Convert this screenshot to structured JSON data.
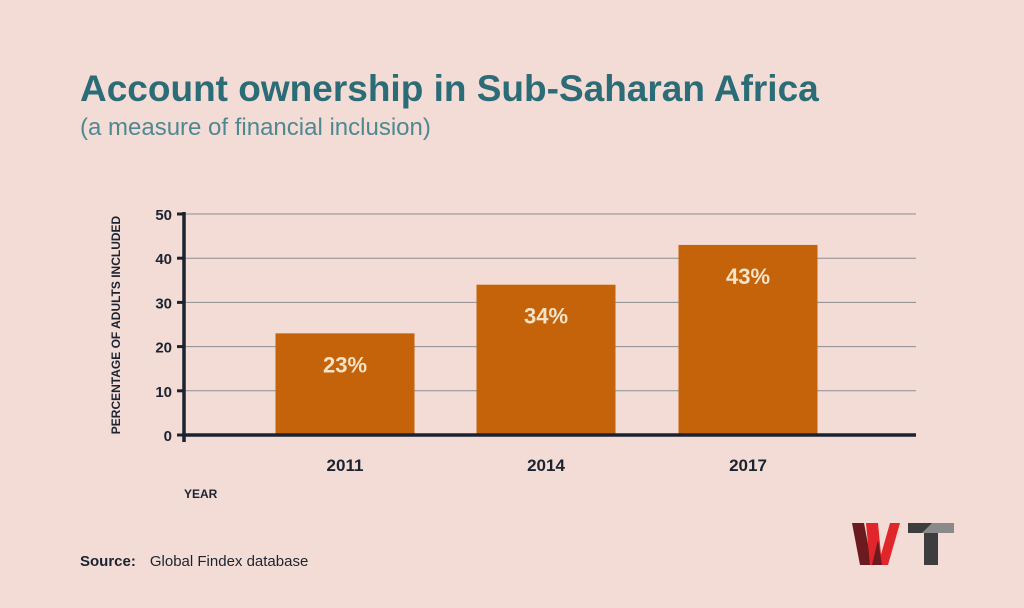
{
  "chart_data": {
    "type": "bar",
    "title": "Account ownership in Sub-Saharan Africa",
    "subtitle": "(a measure of financial inclusion)",
    "categories": [
      "2011",
      "2014",
      "2017"
    ],
    "values": [
      23,
      34,
      43
    ],
    "data_labels": [
      "23%",
      "34%",
      "43%"
    ],
    "xlabel": "YEAR",
    "ylabel": "PERCENTAGE OF ADULTS INCLUDED",
    "ylim": [
      0,
      50
    ],
    "yticks": [
      0,
      10,
      20,
      30,
      40,
      50
    ],
    "grid": true,
    "bar_color": "#c4630a",
    "label_color": "#f6e3c8"
  },
  "source": {
    "label": "Source:",
    "text": "Global Findex database"
  },
  "logo": {
    "text": "WT"
  }
}
